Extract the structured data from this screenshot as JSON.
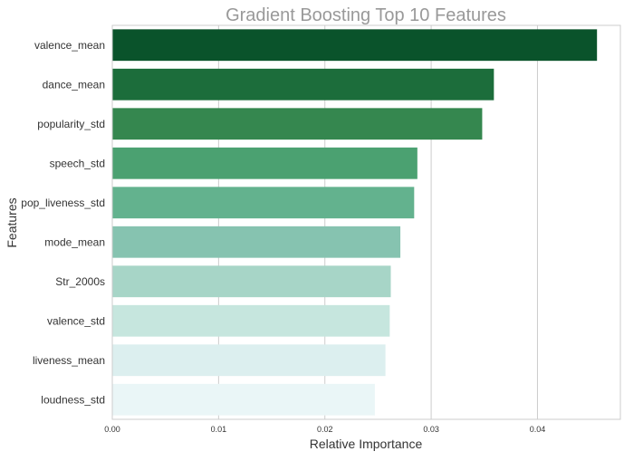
{
  "chart_data": {
    "type": "bar",
    "orientation": "horizontal",
    "title": "Gradient Boosting Top 10 Features",
    "xlabel": "Relative Importance",
    "ylabel": "Features",
    "xlim": [
      0,
      0.0478
    ],
    "xticks": [
      0.0,
      0.01,
      0.02,
      0.03,
      0.04
    ],
    "xtick_labels": [
      "0.00",
      "0.01",
      "0.02",
      "0.03",
      "0.04"
    ],
    "grid": true,
    "categories": [
      "valence_mean",
      "dance_mean",
      "popularity_std",
      "speech_std",
      "pop_liveness_std",
      "mode_mean",
      "Str_2000s",
      "valence_std",
      "liveness_mean",
      "loudness_std"
    ],
    "values": [
      0.0456,
      0.0359,
      0.0348,
      0.0287,
      0.0284,
      0.0271,
      0.0262,
      0.0261,
      0.0257,
      0.0247
    ],
    "colors": [
      "#0a532b",
      "#1c6d3b",
      "#35874f",
      "#4ba171",
      "#63b28e",
      "#86c3b0",
      "#a7d5c7",
      "#c6e6de",
      "#dcefef",
      "#eaf6f7"
    ],
    "title_color": "#999999",
    "text_color": "#333333",
    "grid_color": "#cccccc"
  }
}
